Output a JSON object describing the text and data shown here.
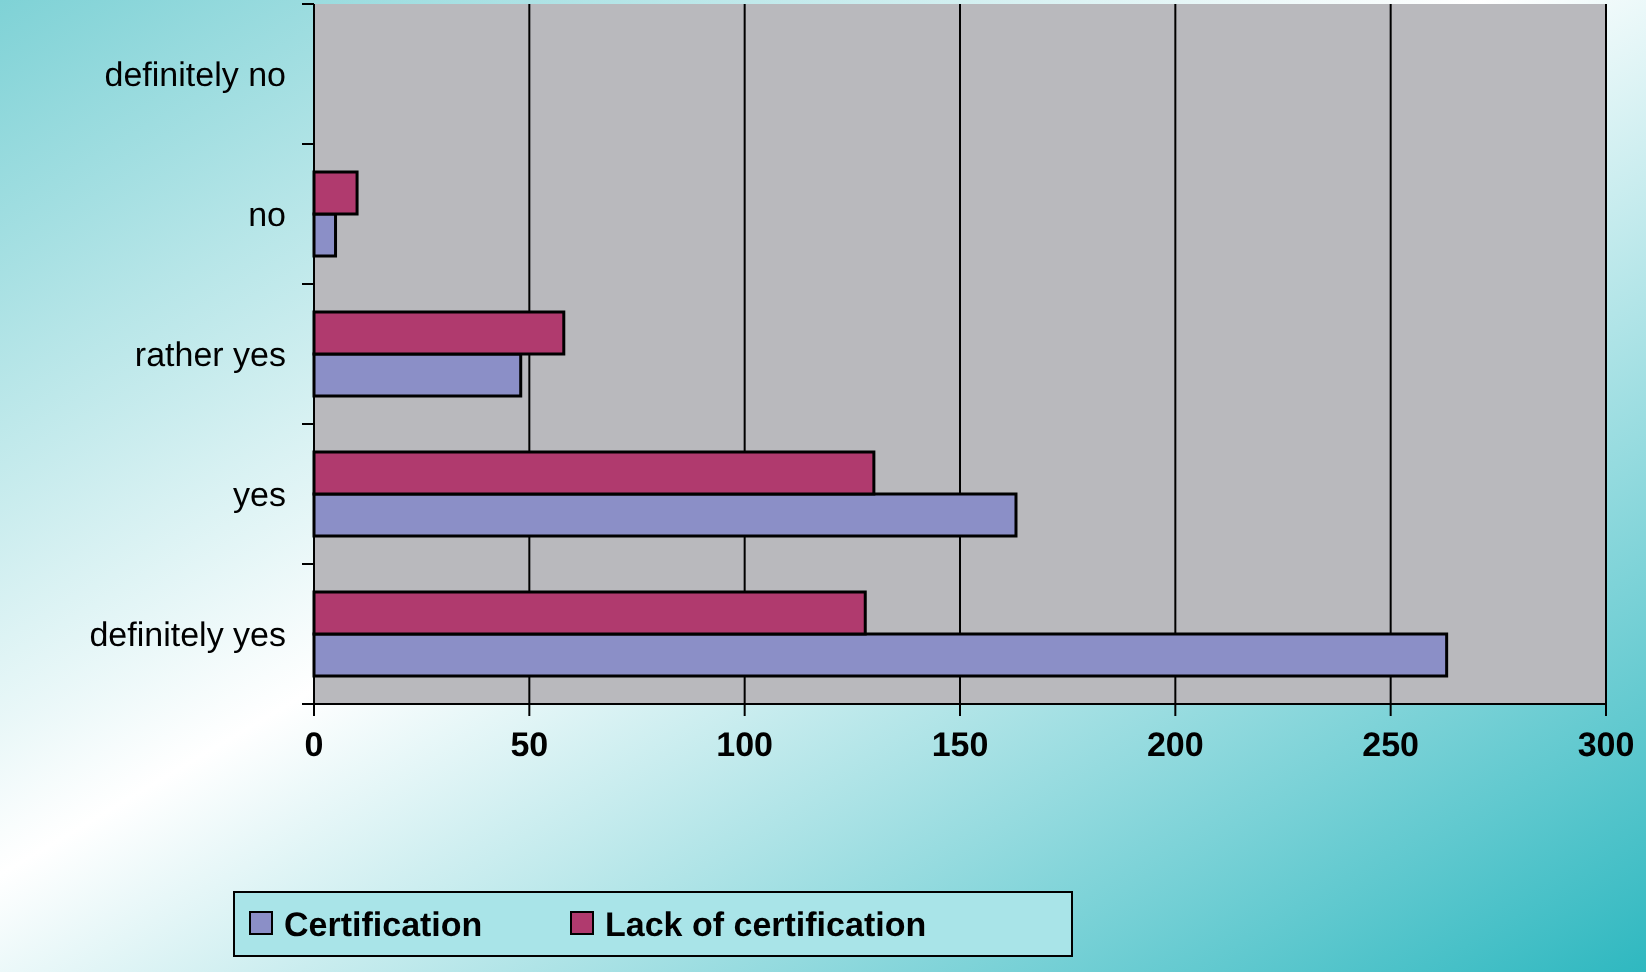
{
  "chart_data": {
    "type": "bar",
    "orientation": "horizontal",
    "categories": [
      "definitely no",
      "no",
      "rather yes",
      "yes",
      "definitely yes"
    ],
    "series": [
      {
        "name": "Certification",
        "color": "#8b8fc7",
        "values": [
          0,
          5,
          48,
          163,
          263
        ]
      },
      {
        "name": "Lack of certification",
        "color": "#b03a6e",
        "values": [
          0,
          10,
          58,
          130,
          128
        ]
      }
    ],
    "xlim": [
      0,
      300
    ],
    "xticks": [
      0,
      50,
      100,
      150,
      200,
      250,
      300
    ],
    "grid": "x",
    "legend": "bottom"
  }
}
